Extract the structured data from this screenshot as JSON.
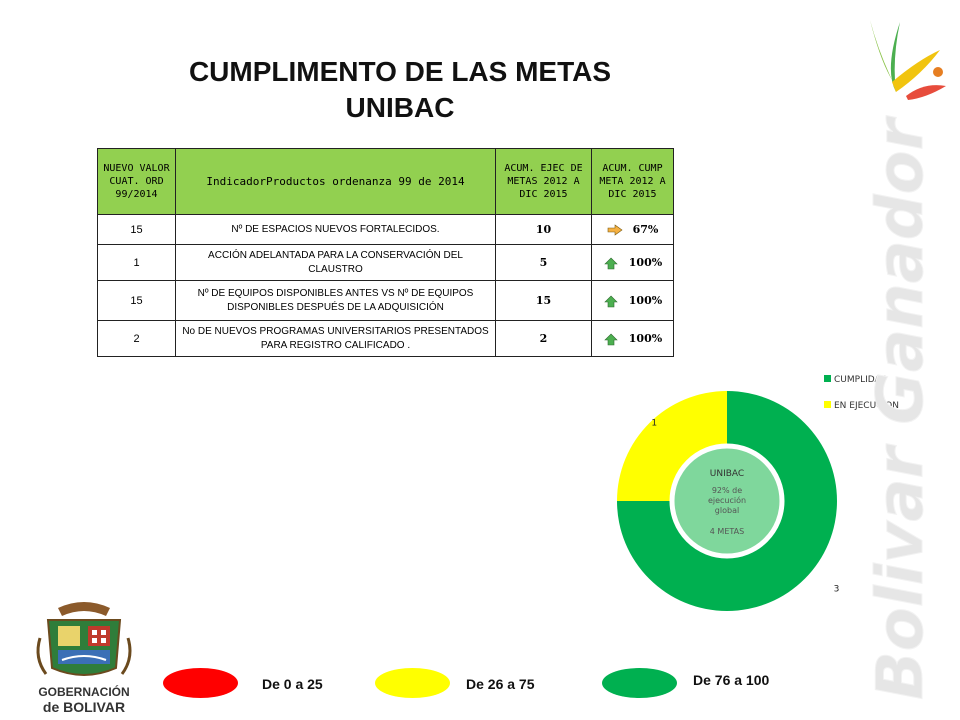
{
  "title": {
    "line1": "CUMPLIMENTO DE LAS METAS",
    "line2": "UNIBAC"
  },
  "table": {
    "headers": [
      "NUEVO VALOR CUAT. ORD 99/2014",
      "IndicadorProductos ordenanza 99 de 2014",
      "ACUM. EJEC DE METAS 2012 A DIC 2015",
      "ACUM. CUMP META 2012 A DIC 2015"
    ],
    "rows": [
      {
        "valor": "15",
        "indicador": "Nº DE ESPACIOS NUEVOS FORTALECIDOS.",
        "ejec": "10",
        "cump": "67%",
        "arrow": "right",
        "arrow_color": "#f5b041"
      },
      {
        "valor": "1",
        "indicador": "ACCIÓN ADELANTADA PARA LA CONSERVACIÓN DEL CLAUSTRO",
        "ejec": "5",
        "cump": "100%",
        "arrow": "up",
        "arrow_color": "#4caf50"
      },
      {
        "valor": "15",
        "indicador": "Nº DE EQUIPOS DISPONIBLES ANTES VS Nº DE EQUIPOS DISPONIBLES DESPUÉS DE LA ADQUISICIÓN",
        "ejec": "15",
        "cump": "100%",
        "arrow": "up",
        "arrow_color": "#4caf50"
      },
      {
        "valor": "2",
        "indicador": "No DE NUEVOS PROGRAMAS UNIVERSITARIOS PRESENTADOS PARA REGISTRO CALIFICADO .",
        "ejec": "2",
        "cump": "100%",
        "arrow": "up",
        "arrow_color": "#4caf50"
      }
    ]
  },
  "chart_data": {
    "type": "pie",
    "variant": "doughnut",
    "categories": [
      "CUMPLIDAS",
      "EN EJECUCION"
    ],
    "values": [
      3,
      1
    ],
    "colors": [
      "#00b050",
      "#ffff00"
    ],
    "legend_position": "top-right",
    "center_text": {
      "title": "UNIBAC",
      "line2": "92% de ejecución global",
      "line3": "4 METAS"
    },
    "center_color": "#7fd79c"
  },
  "scale_legend": [
    {
      "label": "De 0 a 25",
      "color": "#ff0000"
    },
    {
      "label": "De 26 a 75",
      "color": "#ffff00"
    },
    {
      "label": "De 76 a 100",
      "color": "#00b050"
    }
  ],
  "logo": {
    "line1": "GOBERNACIÓN",
    "line2": "de BOLIVAR"
  },
  "brand": {
    "text": "Bolivar Ganador"
  }
}
